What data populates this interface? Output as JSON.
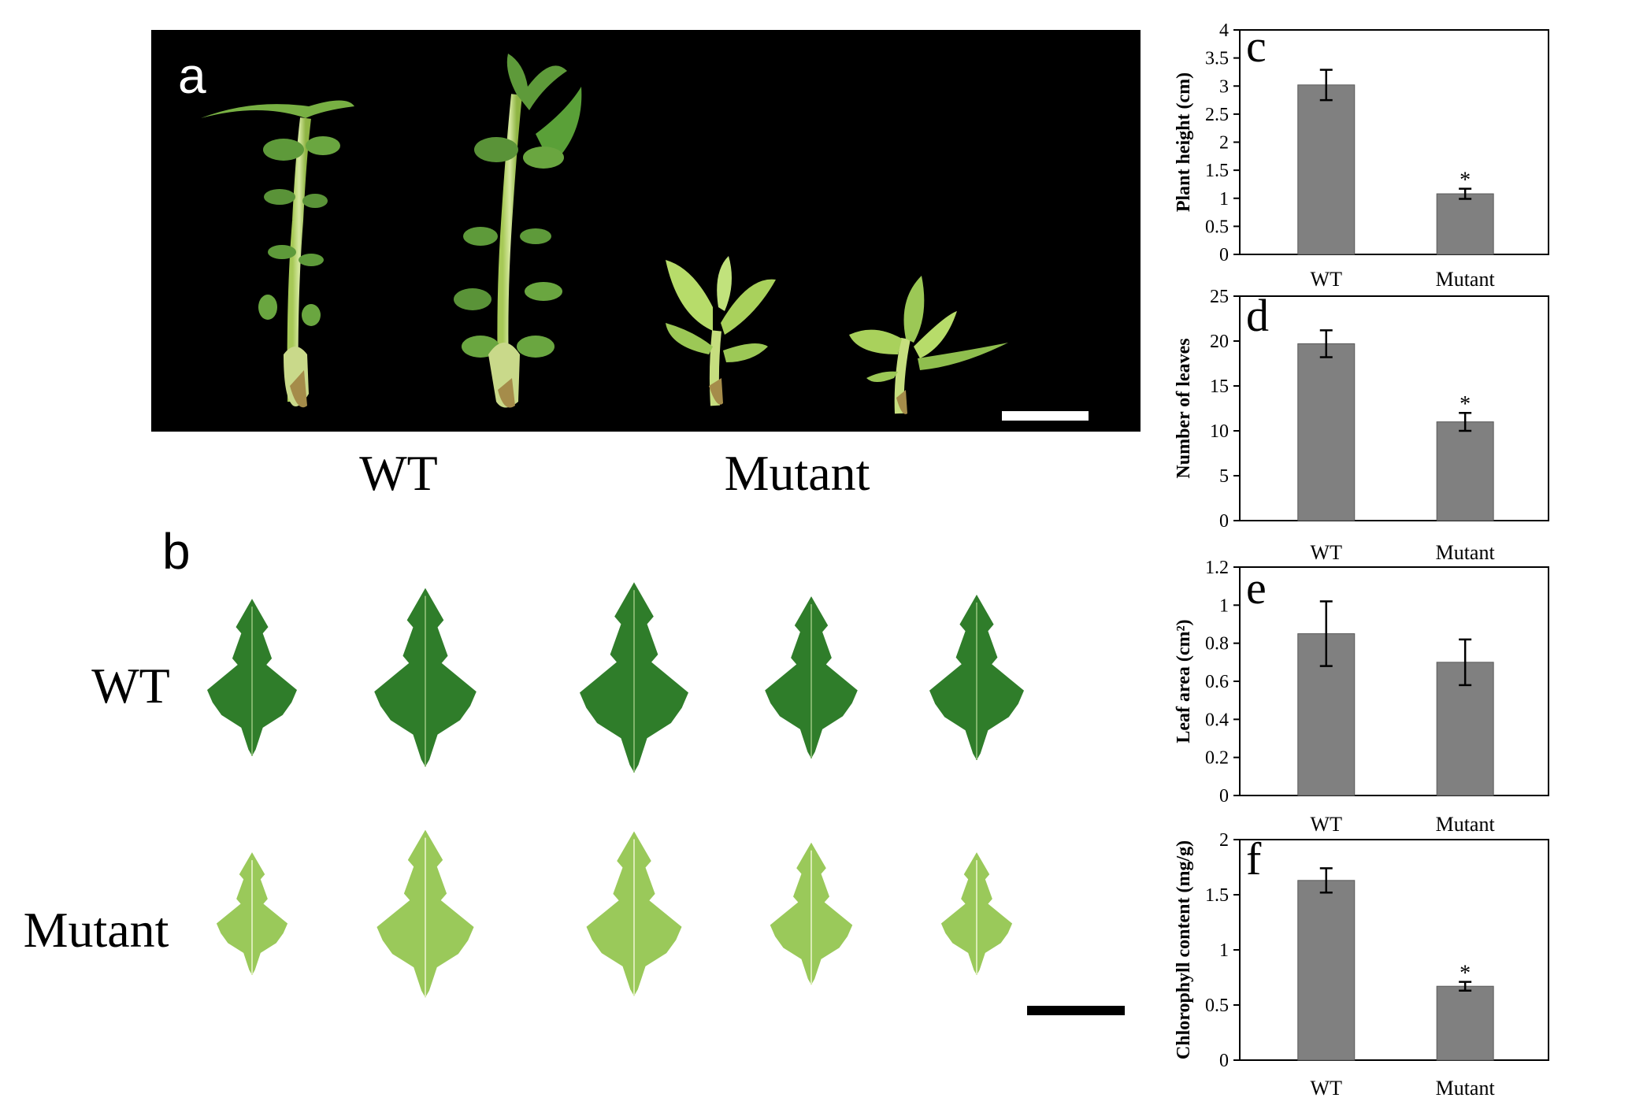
{
  "panel_a": {
    "letter": "a",
    "group_labels": [
      "WT",
      "Mutant"
    ]
  },
  "panel_b": {
    "letter": "b",
    "row_labels": [
      "WT",
      "Mutant"
    ],
    "leaves_per_row": 5
  },
  "colors": {
    "bar": "#808080",
    "bar_stroke": "#5a5a5a",
    "photo_bg": "#000000",
    "wt_leaf": "#2f7d2a",
    "mutant_leaf": "#9ac95a"
  },
  "chart_data": [
    {
      "panel": "c",
      "type": "bar",
      "categories": [
        "WT",
        "Mutant"
      ],
      "values": [
        3.02,
        1.08
      ],
      "errors": [
        0.27,
        0.09
      ],
      "significance": [
        "",
        "*"
      ],
      "ylabel": "Plant height (cm)",
      "ylim": [
        0,
        4
      ],
      "yticks": [
        "0",
        "0.5",
        "1",
        "1.5",
        "2",
        "2.5",
        "3",
        "3.5",
        "4"
      ]
    },
    {
      "panel": "d",
      "type": "bar",
      "categories": [
        "WT",
        "Mutant"
      ],
      "values": [
        19.7,
        11.0
      ],
      "errors": [
        1.5,
        1.0
      ],
      "significance": [
        "",
        "*"
      ],
      "ylabel": "Number of leaves",
      "ylim": [
        0,
        25
      ],
      "yticks": [
        "0",
        "5",
        "10",
        "15",
        "20",
        "25"
      ]
    },
    {
      "panel": "e",
      "type": "bar",
      "categories": [
        "WT",
        "Mutant"
      ],
      "values": [
        0.85,
        0.7
      ],
      "errors": [
        0.17,
        0.12
      ],
      "significance": [
        "",
        ""
      ],
      "ylabel": "Leaf area (cm²)",
      "ylim": [
        0,
        1.2
      ],
      "yticks": [
        "0",
        "0.2",
        "0.4",
        "0.6",
        "0.8",
        "1",
        "1.2"
      ]
    },
    {
      "panel": "f",
      "type": "bar",
      "categories": [
        "WT",
        "Mutant"
      ],
      "values": [
        1.63,
        0.67
      ],
      "errors": [
        0.11,
        0.04
      ],
      "significance": [
        "",
        "*"
      ],
      "ylabel": "Chlorophyll content (mg/g)",
      "ylim": [
        0,
        2
      ],
      "yticks": [
        "0",
        "0.5",
        "1",
        "1.5",
        "2"
      ]
    }
  ]
}
